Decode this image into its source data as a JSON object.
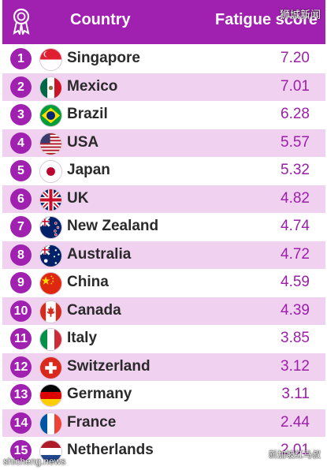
{
  "header": {
    "col_country": "Country",
    "col_score": "Fatigue score",
    "icon": "medal-icon"
  },
  "watermarks": {
    "top_right": "狮城新闻",
    "bottom_left": "shicheng.news",
    "bottom_right": "新加坡红马叔"
  },
  "colors": {
    "header_bg": "#a020b0",
    "row_shade": "#f0d2f0",
    "score_text": "#9b1fa9"
  },
  "rows": [
    {
      "rank": "1",
      "country": "Singapore",
      "score": "7.20",
      "flag": "singapore-flag-icon"
    },
    {
      "rank": "2",
      "country": "Mexico",
      "score": "7.01",
      "flag": "mexico-flag-icon"
    },
    {
      "rank": "3",
      "country": "Brazil",
      "score": "6.28",
      "flag": "brazil-flag-icon"
    },
    {
      "rank": "4",
      "country": "USA",
      "score": "5.57",
      "flag": "usa-flag-icon"
    },
    {
      "rank": "5",
      "country": "Japan",
      "score": "5.32",
      "flag": "japan-flag-icon"
    },
    {
      "rank": "6",
      "country": "UK",
      "score": "4.82",
      "flag": "uk-flag-icon"
    },
    {
      "rank": "7",
      "country": "New Zealand",
      "score": "4.74",
      "flag": "new-zealand-flag-icon"
    },
    {
      "rank": "8",
      "country": "Australia",
      "score": "4.72",
      "flag": "australia-flag-icon"
    },
    {
      "rank": "9",
      "country": "China",
      "score": "4.59",
      "flag": "china-flag-icon"
    },
    {
      "rank": "10",
      "country": "Canada",
      "score": "4.39",
      "flag": "canada-flag-icon"
    },
    {
      "rank": "11",
      "country": "Italy",
      "score": "3.85",
      "flag": "italy-flag-icon"
    },
    {
      "rank": "12",
      "country": "Switzerland",
      "score": "3.12",
      "flag": "switzerland-flag-icon"
    },
    {
      "rank": "13",
      "country": "Germany",
      "score": "3.11",
      "flag": "germany-flag-icon"
    },
    {
      "rank": "14",
      "country": "France",
      "score": "2.44",
      "flag": "france-flag-icon"
    },
    {
      "rank": "15",
      "country": "Netherlands",
      "score": "2.01",
      "flag": "netherlands-flag-icon"
    }
  ]
}
